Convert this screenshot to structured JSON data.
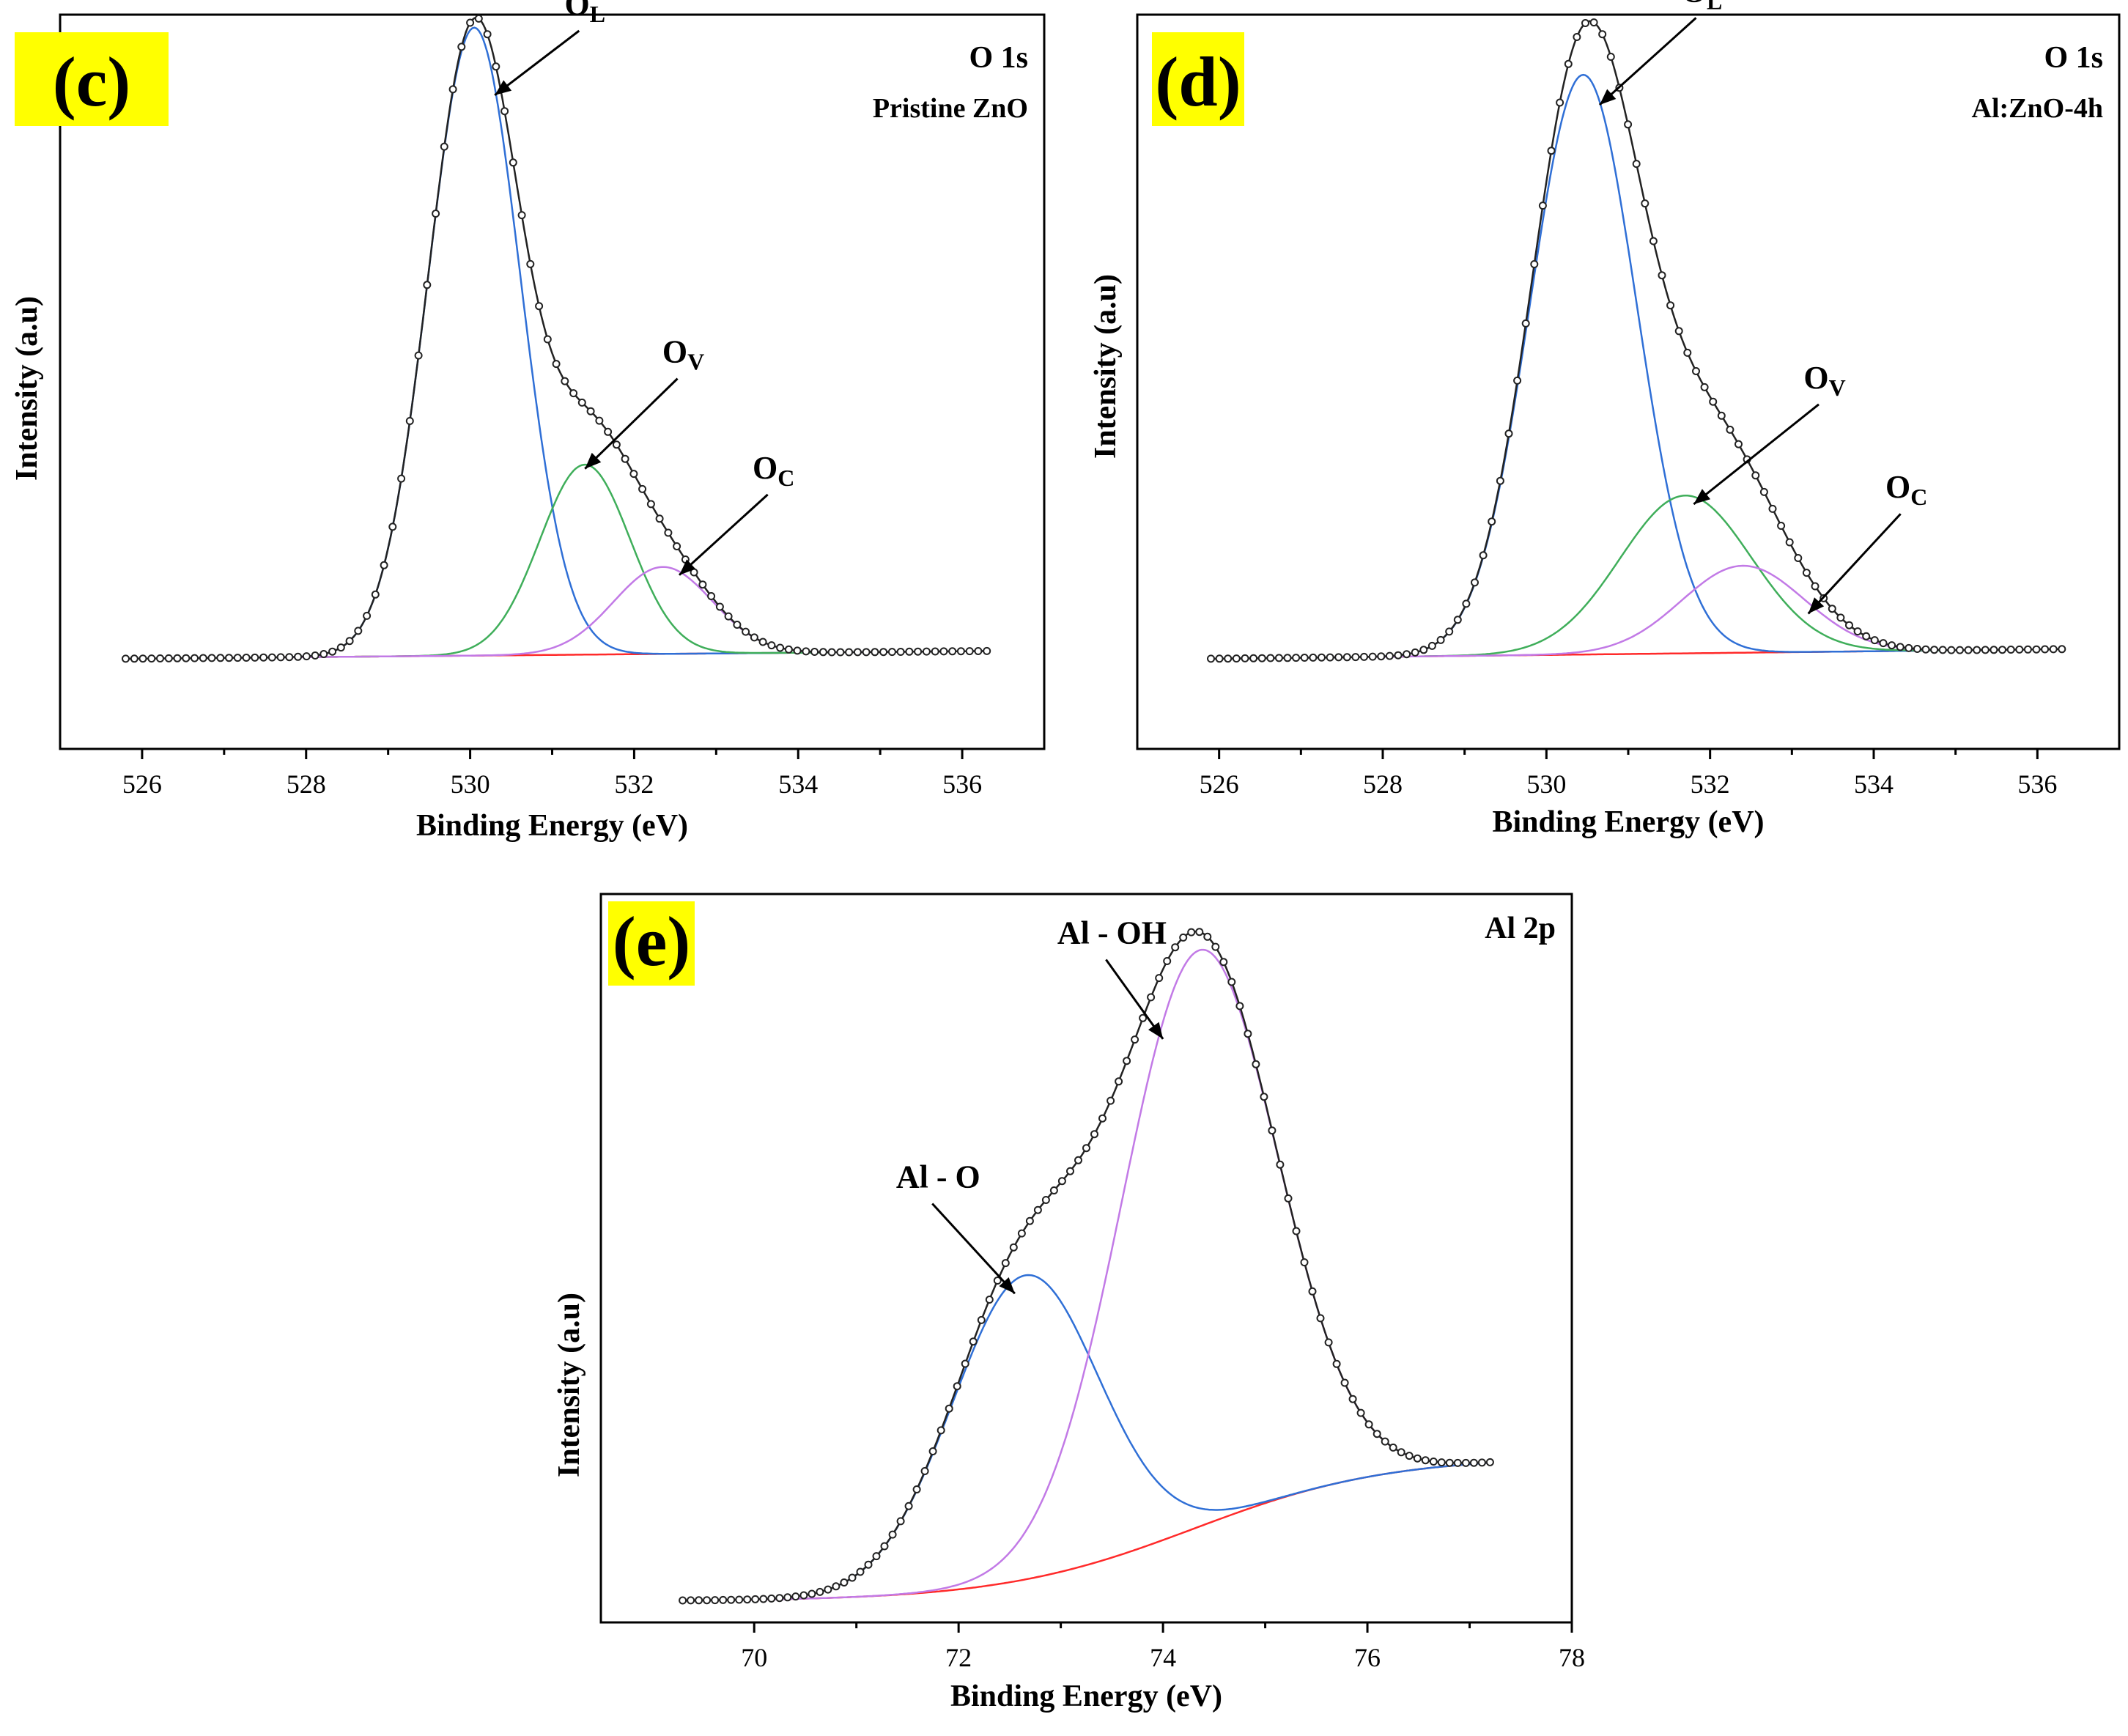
{
  "colors": {
    "envelope": "#222222",
    "component_lattice": "#2f6fd6",
    "component_vacancy": "#3fae5a",
    "component_chemisorbed": "#c27ae6",
    "background": "#ff2a2a",
    "tag_highlight": "#ffff00",
    "axis": "#000000"
  },
  "chart_data": [
    {
      "type": "line",
      "panel_label": "(c)",
      "title": "O 1s",
      "subtitle": "Pristine ZnO",
      "xlabel": "Binding Energy (eV)",
      "ylabel": "Intensity (a.u)",
      "xlim": [
        525,
        537
      ],
      "ylim": [
        -0.14,
        1.0
      ],
      "xticks": [
        526,
        528,
        530,
        532,
        534,
        536
      ],
      "xtick_labels": [
        "526",
        "528",
        "530",
        "532",
        "534",
        "536"
      ],
      "data_range": [
        525.8,
        536.3
      ],
      "series": [
        {
          "name": "Background",
          "role": "background",
          "kind": "linear",
          "start": 0.0,
          "end": 0.012
        },
        {
          "name": "O_L",
          "role": "component_lattice",
          "peaks": [
            {
              "center": 530.05,
              "height": 0.975,
              "sigma": 0.56
            }
          ]
        },
        {
          "name": "O_V",
          "role": "component_vacancy",
          "peaks": [
            {
              "center": 531.4,
              "height": 0.295,
              "sigma": 0.55
            }
          ]
        },
        {
          "name": "O_C",
          "role": "component_chemisorbed",
          "peaks": [
            {
              "center": 532.35,
              "height": 0.135,
              "sigma": 0.6
            }
          ]
        },
        {
          "name": "Envelope",
          "role": "envelope",
          "kind": "sum"
        }
      ],
      "annotations": [
        {
          "text": "O",
          "sub": "L",
          "tx": 531.4,
          "ty": 1.0,
          "ax": 530.3,
          "ay": 0.875
        },
        {
          "text": "O",
          "sub": "V",
          "tx": 532.6,
          "ty": 0.46,
          "ax": 531.4,
          "ay": 0.295
        },
        {
          "text": "O",
          "sub": "C",
          "tx": 533.7,
          "ty": 0.28,
          "ax": 532.55,
          "ay": 0.13
        }
      ]
    },
    {
      "type": "line",
      "panel_label": "(d)",
      "title": "O 1s",
      "subtitle": "Al:ZnO-4h",
      "xlabel": "Binding Energy (eV)",
      "ylabel": "Intensity (a.u)",
      "xlim": [
        525,
        537
      ],
      "ylim": [
        -0.14,
        1.0
      ],
      "xticks": [
        526,
        528,
        530,
        532,
        534,
        536
      ],
      "xtick_labels": [
        "526",
        "528",
        "530",
        "532",
        "534",
        "536"
      ],
      "data_range": [
        525.9,
        536.3
      ],
      "series": [
        {
          "name": "Background",
          "role": "background",
          "kind": "linear",
          "start": 0.0,
          "end": 0.015
        },
        {
          "name": "O_L",
          "role": "component_lattice",
          "peaks": [
            {
              "center": 530.45,
              "height": 0.9,
              "sigma": 0.65
            }
          ]
        },
        {
          "name": "O_V",
          "role": "component_vacancy",
          "peaks": [
            {
              "center": 531.7,
              "height": 0.245,
              "sigma": 0.8
            }
          ]
        },
        {
          "name": "O_C",
          "role": "component_chemisorbed",
          "peaks": [
            {
              "center": 532.4,
              "height": 0.135,
              "sigma": 0.75
            }
          ]
        },
        {
          "name": "Envelope",
          "role": "envelope",
          "kind": "sum"
        }
      ],
      "annotations": [
        {
          "text": "O",
          "sub": "L",
          "tx": 531.9,
          "ty": 1.02,
          "ax": 530.65,
          "ay": 0.86
        },
        {
          "text": "O",
          "sub": "V",
          "tx": 533.4,
          "ty": 0.42,
          "ax": 531.8,
          "ay": 0.24
        },
        {
          "text": "O",
          "sub": "C",
          "tx": 534.4,
          "ty": 0.25,
          "ax": 533.2,
          "ay": 0.07
        }
      ]
    },
    {
      "type": "line",
      "panel_label": "(e)",
      "title": "Al 2p",
      "subtitle": "",
      "xlabel": "Binding Energy (eV)",
      "ylabel": "Intensity (a.u)",
      "xlim": [
        68.5,
        78
      ],
      "ylim": [
        -0.03,
        1.0
      ],
      "xticks": [
        70,
        72,
        74,
        76,
        78
      ],
      "xtick_labels": [
        "70",
        "72",
        "74",
        "76",
        "78"
      ],
      "data_range": [
        69.3,
        77.2
      ],
      "series": [
        {
          "name": "Background",
          "role": "background",
          "kind": "sigmoid",
          "start": 0.0,
          "end": 0.205,
          "center": 74.3,
          "width": 0.95
        },
        {
          "name": "Al - O",
          "role": "component_lattice",
          "peaks": [
            {
              "center": 72.65,
              "height": 0.43,
              "sigma": 0.72
            }
          ]
        },
        {
          "name": "Al - OH",
          "role": "component_chemisorbed",
          "peaks": [
            {
              "center": 74.35,
              "height": 0.815,
              "sigma": 0.76
            }
          ]
        },
        {
          "name": "Envelope",
          "role": "envelope",
          "kind": "sum"
        }
      ],
      "annotations": [
        {
          "text": "Al - OH",
          "sub": "",
          "tx": 73.5,
          "ty": 0.93,
          "ax": 74.0,
          "ay": 0.795
        },
        {
          "text": "Al - O",
          "sub": "",
          "tx": 71.8,
          "ty": 0.585,
          "ax": 72.55,
          "ay": 0.435
        }
      ]
    }
  ]
}
